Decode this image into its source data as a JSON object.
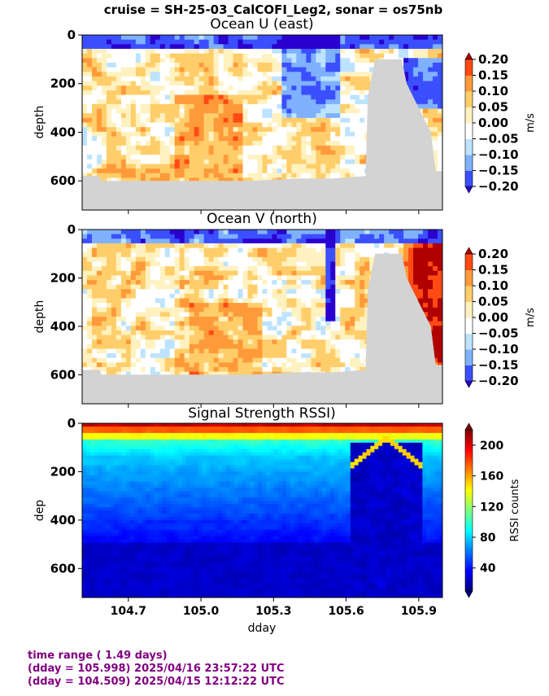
{
  "figure": {
    "suptitle": "cruise = SH-25-03_CalCOFI_Leg2,  sonar = os75nb"
  },
  "footer": {
    "line1": "time range ( 1.49 days)",
    "line2": "(dday = 105.998) 2025/04/16 23:57:22 UTC",
    "line3": "(dday = 104.509) 2025/04/15 12:12:22 UTC"
  },
  "colors": {
    "land_gray": "#d3d3d3",
    "footer_purple": "#800080",
    "div_levels": [
      "#2a00d0",
      "#3b4fff",
      "#7fb1ff",
      "#bde3ff",
      "#ffffff",
      "#fff2c0",
      "#ffce6b",
      "#ff9a3a",
      "#ff4a14",
      "#b00000"
    ],
    "jet": [
      "#00007f",
      "#0000ff",
      "#007fff",
      "#00ffff",
      "#7fff7f",
      "#ffff00",
      "#ff7f00",
      "#ff0000",
      "#7f0000"
    ]
  },
  "chart_data": [
    {
      "type": "heatmap",
      "title": "Ocean U (east)",
      "xlabel": "",
      "ylabel": "depth",
      "xlim": [
        104.509,
        105.998
      ],
      "ylim": [
        720,
        0
      ],
      "yticks": [
        "0",
        "200",
        "400",
        "600"
      ],
      "xticks": [
        "104.7",
        "105.0",
        "105.3",
        "105.6",
        "105.9"
      ],
      "colorbar": {
        "label": "m/s",
        "ticks": [
          "0.20",
          "0.15",
          "0.10",
          "0.05",
          "0.00",
          "−0.05",
          "−0.10",
          "−0.15",
          "−0.20"
        ],
        "range": [
          -0.2,
          0.2
        ]
      },
      "bottom_depth_profile": {
        "dday": [
          104.509,
          104.58,
          104.59,
          104.7,
          104.9,
          105.2,
          105.4,
          105.55,
          105.68,
          105.69,
          105.72,
          105.83,
          105.85,
          105.9,
          105.95,
          105.97,
          105.998
        ],
        "depth": [
          580,
          580,
          600,
          600,
          600,
          600,
          590,
          590,
          580,
          250,
          100,
          100,
          200,
          300,
          400,
          560,
          560
        ]
      }
    },
    {
      "type": "heatmap",
      "title": "Ocean V (north)",
      "xlabel": "",
      "ylabel": "depth",
      "xlim": [
        104.509,
        105.998
      ],
      "ylim": [
        720,
        0
      ],
      "yticks": [
        "0",
        "200",
        "400",
        "600"
      ],
      "xticks": [
        "104.7",
        "105.0",
        "105.3",
        "105.6",
        "105.9"
      ],
      "colorbar": {
        "label": "m/s",
        "ticks": [
          "0.20",
          "0.15",
          "0.10",
          "0.05",
          "0.00",
          "−0.05",
          "−0.10",
          "−0.15",
          "−0.20"
        ],
        "range": [
          -0.2,
          0.2
        ]
      }
    },
    {
      "type": "heatmap",
      "title": "Signal Strength RSSI)",
      "xlabel": "dday",
      "ylabel": "dep",
      "xlim": [
        104.509,
        105.998
      ],
      "ylim": [
        720,
        0
      ],
      "yticks": [
        "0",
        "200",
        "400",
        "600"
      ],
      "xticks": [
        "104.7",
        "105.0",
        "105.3",
        "105.6",
        "105.9"
      ],
      "colorbar": {
        "label": "RSSI counts",
        "ticks": [
          "200",
          "160",
          "120",
          "80",
          "40"
        ],
        "range": [
          10,
          220
        ]
      }
    }
  ]
}
